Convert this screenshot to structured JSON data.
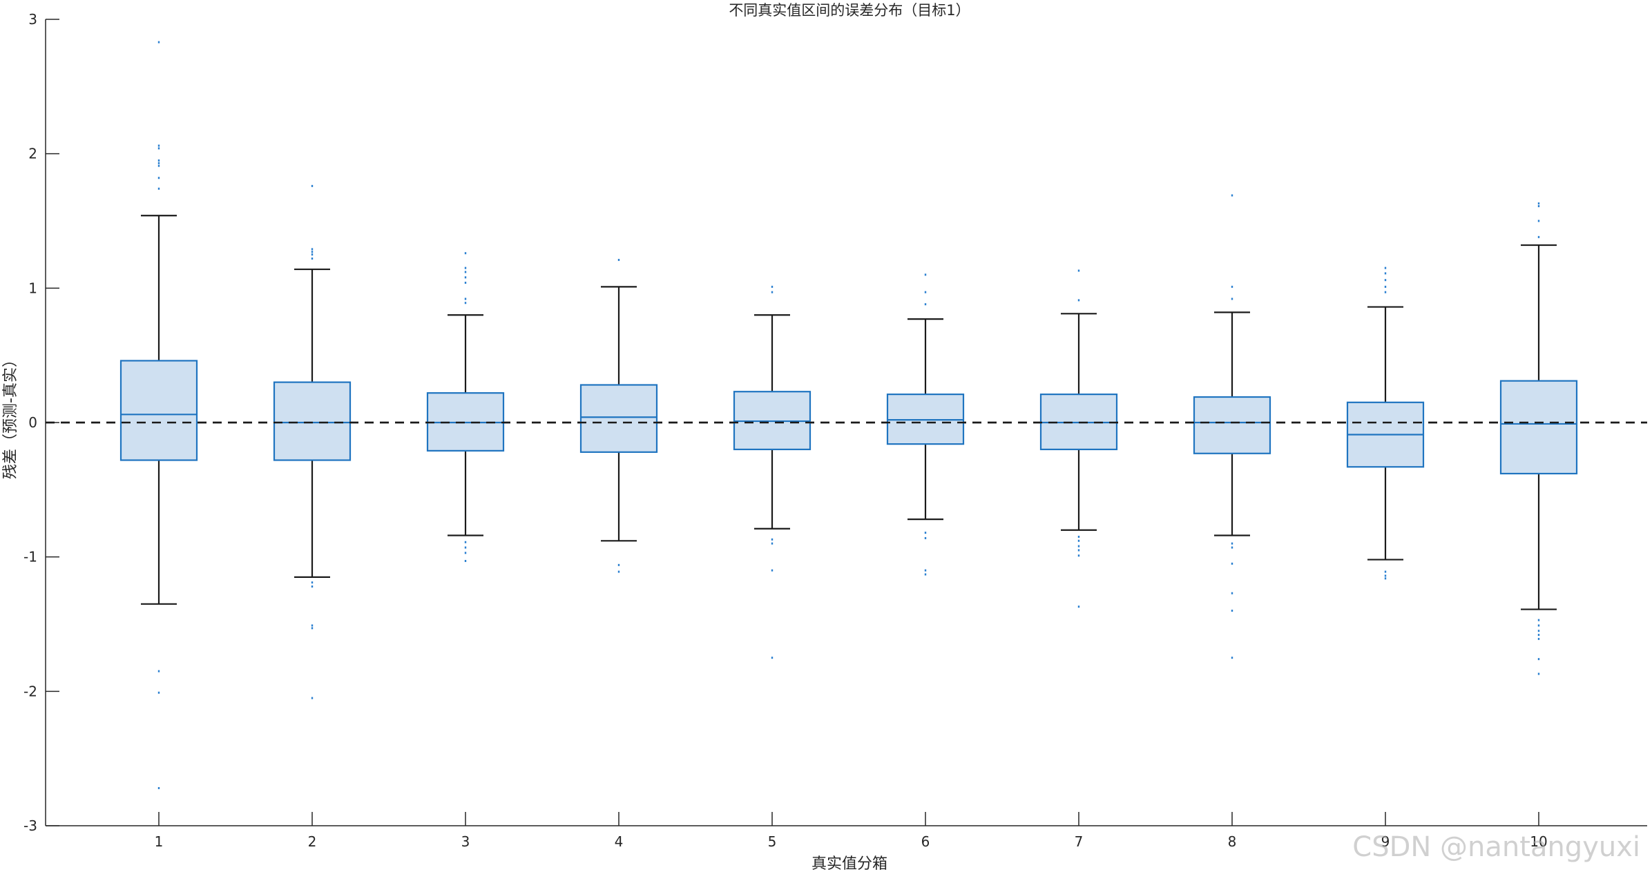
{
  "chart_data": {
    "type": "box",
    "title": "不同真实值区间的误差分布（目标1）",
    "xlabel": "真实值分箱",
    "ylabel": "残差（预测-真实）",
    "ylim": [
      -3,
      3
    ],
    "y_ticks": [
      3,
      2,
      1,
      0,
      -1,
      -2,
      -3
    ],
    "y_tick_labels": [
      "3",
      "2",
      "1",
      "0",
      "-1",
      "-2",
      "-3"
    ],
    "reference_line": {
      "y": 0,
      "style": "dashed",
      "color": "#1a1a1a"
    },
    "grid": false,
    "colors": {
      "box_fill": "#cfe0f1",
      "box_edge": "#1f74c0",
      "whisker": "#1a1a1a",
      "outlier": "#2a7fd0"
    },
    "categories": [
      "1",
      "2",
      "3",
      "4",
      "5",
      "6",
      "7",
      "8",
      "9",
      "10"
    ],
    "boxes": [
      {
        "category": "1",
        "whisker_low": -1.35,
        "q1": -0.28,
        "median": 0.06,
        "q3": 0.46,
        "whisker_high": 1.54,
        "outliers": [
          2.83,
          2.06,
          2.04,
          1.95,
          1.93,
          1.91,
          1.82,
          1.74,
          -1.85,
          -2.01,
          -2.72
        ]
      },
      {
        "category": "2",
        "whisker_low": -1.15,
        "q1": -0.28,
        "median": 0.0,
        "q3": 0.3,
        "whisker_high": 1.14,
        "outliers": [
          1.76,
          1.29,
          1.27,
          1.25,
          1.22,
          -1.19,
          -1.22,
          -1.51,
          -1.53,
          -2.05
        ]
      },
      {
        "category": "3",
        "whisker_low": -0.84,
        "q1": -0.21,
        "median": 0.0,
        "q3": 0.22,
        "whisker_high": 0.8,
        "outliers": [
          1.26,
          1.15,
          1.12,
          1.08,
          1.04,
          0.92,
          0.89,
          -0.89,
          -0.93,
          -0.97,
          -1.03
        ]
      },
      {
        "category": "4",
        "whisker_low": -0.88,
        "q1": -0.22,
        "median": 0.04,
        "q3": 0.28,
        "whisker_high": 1.01,
        "outliers": [
          1.21,
          -1.06,
          -1.11
        ]
      },
      {
        "category": "5",
        "whisker_low": -0.79,
        "q1": -0.2,
        "median": 0.01,
        "q3": 0.23,
        "whisker_high": 0.8,
        "outliers": [
          1.01,
          0.97,
          -0.87,
          -0.9,
          -1.1,
          -1.75
        ]
      },
      {
        "category": "6",
        "whisker_low": -0.72,
        "q1": -0.16,
        "median": 0.02,
        "q3": 0.21,
        "whisker_high": 0.77,
        "outliers": [
          1.1,
          0.97,
          0.88,
          -0.82,
          -0.86,
          -1.1,
          -1.13
        ]
      },
      {
        "category": "7",
        "whisker_low": -0.8,
        "q1": -0.2,
        "median": 0.0,
        "q3": 0.21,
        "whisker_high": 0.81,
        "outliers": [
          1.13,
          0.91,
          -0.85,
          -0.88,
          -0.92,
          -0.95,
          -0.99,
          -1.37
        ]
      },
      {
        "category": "8",
        "whisker_low": -0.84,
        "q1": -0.23,
        "median": 0.0,
        "q3": 0.19,
        "whisker_high": 0.82,
        "outliers": [
          1.69,
          1.01,
          0.92,
          -0.9,
          -0.93,
          -1.05,
          -1.27,
          -1.4,
          -1.75
        ]
      },
      {
        "category": "9",
        "whisker_low": -1.02,
        "q1": -0.33,
        "median": -0.09,
        "q3": 0.15,
        "whisker_high": 0.86,
        "outliers": [
          1.15,
          1.11,
          1.06,
          1.01,
          0.97,
          -1.11,
          -1.14,
          -1.16
        ]
      },
      {
        "category": "10",
        "whisker_low": -1.39,
        "q1": -0.38,
        "median": -0.01,
        "q3": 0.31,
        "whisker_high": 1.32,
        "outliers": [
          1.63,
          1.61,
          1.5,
          1.38,
          -1.47,
          -1.51,
          -1.55,
          -1.58,
          -1.61,
          -1.76,
          -1.87
        ]
      }
    ]
  },
  "watermark": "CSDN @nantangyuxi"
}
